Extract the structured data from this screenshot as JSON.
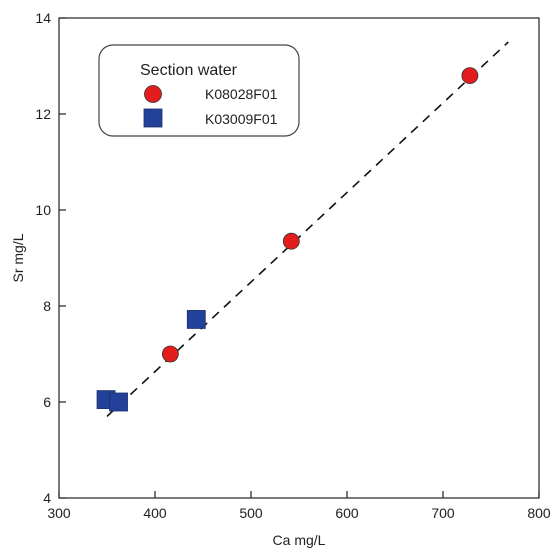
{
  "chart_data": {
    "type": "scatter",
    "xlabel": "Ca mg/L",
    "ylabel": "Sr mg/L",
    "xlim": [
      300,
      800
    ],
    "ylim": [
      4,
      14
    ],
    "x_ticks": [
      300,
      400,
      500,
      600,
      700,
      800
    ],
    "y_ticks": [
      4,
      6,
      8,
      10,
      12,
      14
    ],
    "grid": false,
    "legend": {
      "title": "Section water",
      "placement": "top-left"
    },
    "series": [
      {
        "name": "K08028F01",
        "marker": "circle",
        "color": "#e31d1d",
        "points": [
          [
            416,
            7.0
          ],
          [
            542,
            9.35
          ],
          [
            728,
            12.8
          ]
        ]
      },
      {
        "name": "K03009F01",
        "marker": "square",
        "color": "#24419a",
        "points": [
          [
            349,
            6.05
          ],
          [
            362,
            6.0
          ],
          [
            443,
            7.72
          ]
        ]
      }
    ],
    "trendline": {
      "style": "dashed",
      "color": "#111111",
      "from": [
        350,
        5.7
      ],
      "to": [
        768,
        13.5
      ]
    }
  }
}
